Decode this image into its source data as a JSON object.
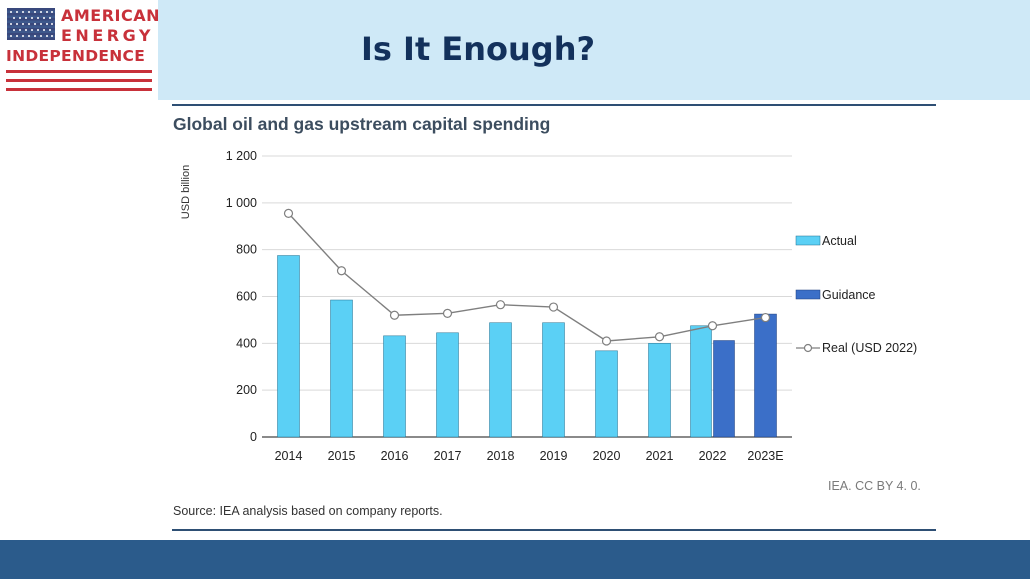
{
  "header": {
    "title": "Is It Enough?"
  },
  "brand": {
    "line1": "AMERICAN",
    "line2": "ENERGY",
    "line3": "INDEPENDENCE"
  },
  "colors": {
    "actual": "#5bd0f5",
    "guidance": "#3b6fc8",
    "real_line": "#7f7f7f",
    "title_navy": "#13315c",
    "brand_red": "#c8313a"
  },
  "chart_data": {
    "type": "bar",
    "title": "Global oil and gas upstream capital spending",
    "ylabel": "USD billion",
    "xlabel": "",
    "ylim": [
      0,
      1200
    ],
    "yticks": [
      0,
      200,
      400,
      600,
      800,
      1000,
      1200
    ],
    "ytick_labels": [
      "0",
      "200",
      "400",
      "600",
      "800",
      "1 000",
      "1 200"
    ],
    "categories": [
      "2014",
      "2015",
      "2016",
      "2017",
      "2018",
      "2019",
      "2020",
      "2021",
      "2022",
      "2023E"
    ],
    "series": [
      {
        "name": "Actual",
        "kind": "bar",
        "values": [
          775,
          585,
          432,
          445,
          488,
          488,
          368,
          400,
          475,
          null
        ]
      },
      {
        "name": "Guidance",
        "kind": "bar",
        "values": [
          null,
          null,
          null,
          null,
          null,
          null,
          null,
          null,
          412,
          525
        ]
      },
      {
        "name": "Real (USD 2022)",
        "kind": "line",
        "values": [
          955,
          710,
          520,
          528,
          565,
          555,
          410,
          428,
          475,
          510
        ]
      }
    ],
    "grid": true,
    "legend_position": "right",
    "credit": "IEA. CC BY 4. 0.",
    "source": "Source: IEA analysis based on company reports."
  }
}
